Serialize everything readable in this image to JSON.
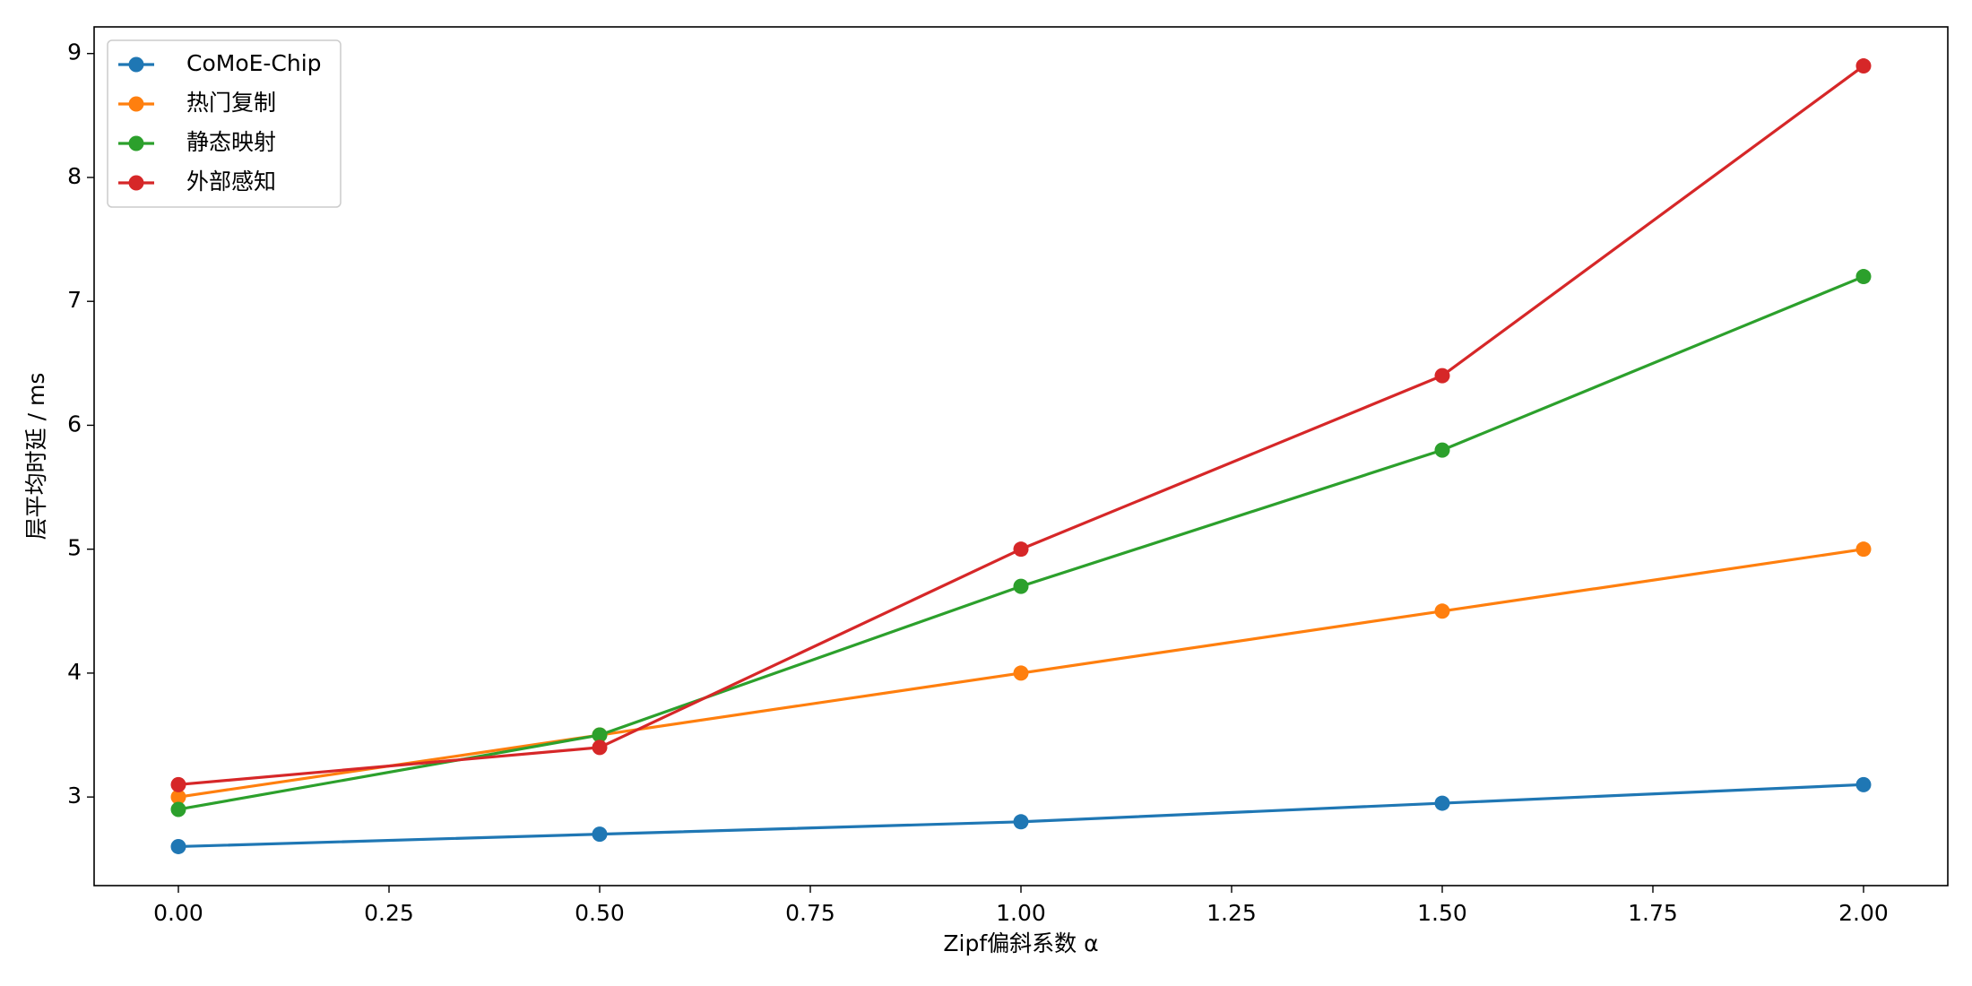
{
  "chart_data": {
    "type": "line",
    "xlabel": "Zipf偏斜系数 α",
    "ylabel": "层平均时延 / ms",
    "x": [
      0,
      0.5,
      1,
      1.5,
      2
    ],
    "series": [
      {
        "name": "CoMoE-Chip",
        "color": "#1f77b4",
        "values": [
          2.6,
          2.7,
          2.8,
          2.95,
          3.1
        ]
      },
      {
        "name": "热门复制",
        "color": "#ff7f0e",
        "values": [
          3.0,
          3.5,
          4.0,
          4.5,
          5.0
        ]
      },
      {
        "name": "静态映射",
        "color": "#2ca02c",
        "values": [
          2.9,
          3.5,
          4.7,
          5.8,
          7.2
        ]
      },
      {
        "name": "外部感知",
        "color": "#d62728",
        "values": [
          3.1,
          3.4,
          5.0,
          6.4,
          8.9
        ]
      }
    ],
    "xlim": [
      -0.1,
      2.1
    ],
    "ylim": [
      2.285,
      9.215
    ],
    "xticks": [
      {
        "value": 0,
        "label": "0.00"
      },
      0.25,
      {
        "value": 0.5,
        "label": "0.50"
      },
      0.75,
      {
        "value": 1,
        "label": "1.00"
      },
      1.25,
      {
        "value": 1.5,
        "label": "1.50"
      },
      1.75,
      {
        "value": 2,
        "label": "2.00"
      }
    ],
    "yticks": [
      3,
      4,
      5,
      6,
      7,
      8,
      9
    ],
    "legend": "upper left",
    "grid": false
  }
}
